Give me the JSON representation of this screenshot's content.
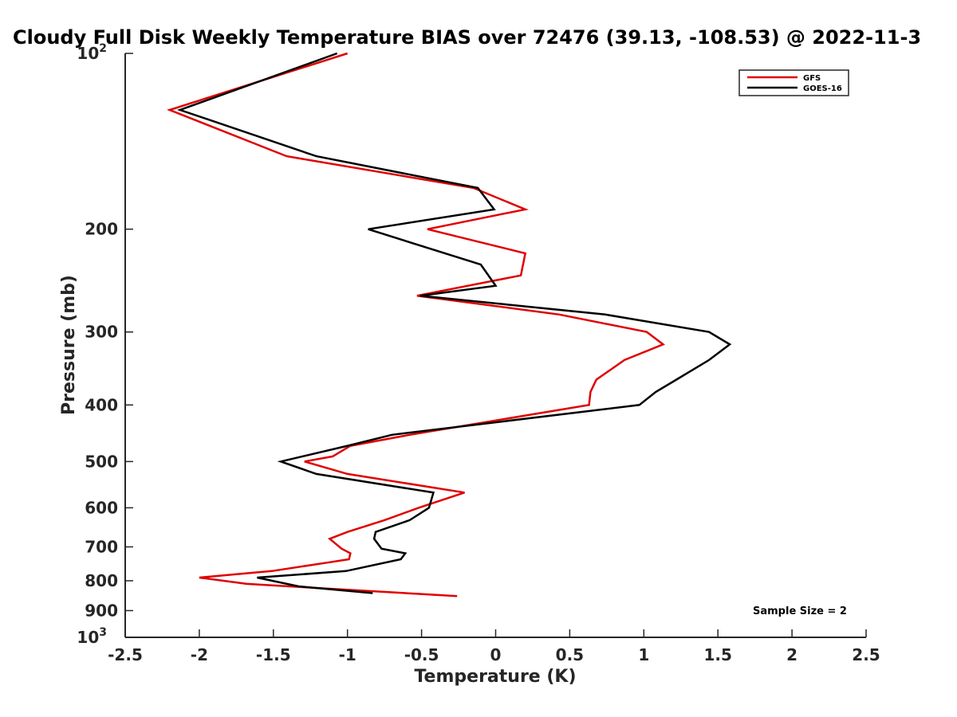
{
  "chart_data": {
    "type": "line",
    "title": "Cloudy Full Disk Weekly Temperature BIAS over 72476 (39.13, -108.53) @ 2022-11-3",
    "xlabel": "Temperature (K)",
    "ylabel": "Pressure (mb)",
    "xlim": [
      -2.5,
      2.5
    ],
    "ylim": [
      100,
      1000
    ],
    "yscale": "log",
    "y_reversed": true,
    "x_ticks": [
      "-2.5",
      "-2",
      "-1.5",
      "-1",
      "-0.5",
      "0",
      "0.5",
      "1",
      "1.5",
      "2",
      "2.5"
    ],
    "y_ticks": [
      {
        "value": 100,
        "base": "10",
        "exp": "2"
      },
      {
        "value": 200,
        "label": "200"
      },
      {
        "value": 300,
        "label": "300"
      },
      {
        "value": 400,
        "label": "400"
      },
      {
        "value": 500,
        "label": "500"
      },
      {
        "value": 600,
        "label": "600"
      },
      {
        "value": 700,
        "label": "700"
      },
      {
        "value": 800,
        "label": "800"
      },
      {
        "value": 900,
        "label": "900"
      },
      {
        "value": 1000,
        "base": "10",
        "exp": "3"
      }
    ],
    "grid": false,
    "legend_position": "top-right",
    "annotation": "Sample Size = 2",
    "series": [
      {
        "name": "GFS",
        "color": "#e00000",
        "points": [
          [
            -1.0,
            100
          ],
          [
            -2.2,
            125
          ],
          [
            -1.41,
            150
          ],
          [
            -0.15,
            170
          ],
          [
            0.2,
            185
          ],
          [
            -0.46,
            200
          ],
          [
            0.2,
            220
          ],
          [
            0.17,
            240
          ],
          [
            -0.53,
            260
          ],
          [
            0.43,
            280
          ],
          [
            1.02,
            300
          ],
          [
            1.13,
            315
          ],
          [
            0.87,
            335
          ],
          [
            0.68,
            362
          ],
          [
            0.64,
            380
          ],
          [
            0.63,
            400
          ],
          [
            -0.58,
            450
          ],
          [
            -0.98,
            470
          ],
          [
            -1.1,
            490
          ],
          [
            -1.29,
            500
          ],
          [
            -1.0,
            525
          ],
          [
            -0.21,
            565
          ],
          [
            -0.52,
            600
          ],
          [
            -0.75,
            630
          ],
          [
            -1.0,
            660
          ],
          [
            -1.12,
            678
          ],
          [
            -1.04,
            705
          ],
          [
            -0.98,
            718
          ],
          [
            -0.99,
            735
          ],
          [
            -1.14,
            745
          ],
          [
            -1.51,
            770
          ],
          [
            -2.0,
            790
          ],
          [
            -1.68,
            810
          ],
          [
            -0.26,
            850
          ]
        ]
      },
      {
        "name": "GOES-16",
        "color": "#000000",
        "points": [
          [
            -1.07,
            100
          ],
          [
            -2.13,
            125
          ],
          [
            -1.21,
            150
          ],
          [
            -0.12,
            170
          ],
          [
            -0.01,
            185
          ],
          [
            -0.86,
            200
          ],
          [
            -0.1,
            230
          ],
          [
            0.0,
            250
          ],
          [
            -0.51,
            260
          ],
          [
            0.74,
            280
          ],
          [
            1.44,
            300
          ],
          [
            1.58,
            315
          ],
          [
            1.44,
            335
          ],
          [
            1.22,
            362
          ],
          [
            1.08,
            380
          ],
          [
            0.97,
            400
          ],
          [
            -0.7,
            450
          ],
          [
            -1.0,
            470
          ],
          [
            -1.45,
            500
          ],
          [
            -1.21,
            525
          ],
          [
            -0.42,
            565
          ],
          [
            -0.45,
            600
          ],
          [
            -0.58,
            630
          ],
          [
            -0.81,
            660
          ],
          [
            -0.82,
            678
          ],
          [
            -0.77,
            705
          ],
          [
            -0.61,
            718
          ],
          [
            -0.64,
            735
          ],
          [
            -1.01,
            770
          ],
          [
            -1.61,
            790
          ],
          [
            -1.33,
            818
          ],
          [
            -0.83,
            840
          ]
        ]
      }
    ]
  }
}
